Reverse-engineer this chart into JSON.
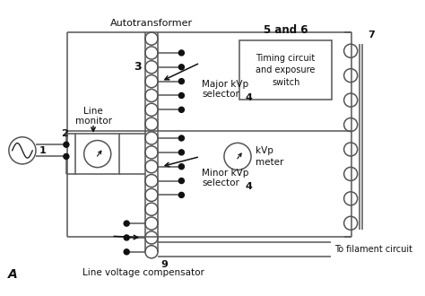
{
  "bg_color": "#ffffff",
  "title_text": "Autotransformer",
  "label_1": "1",
  "label_2": "2",
  "label_3": "3",
  "label_4a": "4",
  "label_4b": "4",
  "label_5and6": "5 and 6",
  "label_7": "7",
  "label_9": "9",
  "label_A": "A",
  "line_monitor": "Line\nmonitor",
  "major_kvp": "Major kVp\nselector",
  "minor_kvp": "Minor kVp\nselector",
  "timing_circuit": "Timing circuit\nand exposure\nswitch",
  "kvp_meter": "kVp\nmeter",
  "to_filament": "To filament circuit",
  "line_voltage": "Line voltage compensator",
  "line_color": "#555555",
  "dot_color": "#111111",
  "text_color": "#111111"
}
